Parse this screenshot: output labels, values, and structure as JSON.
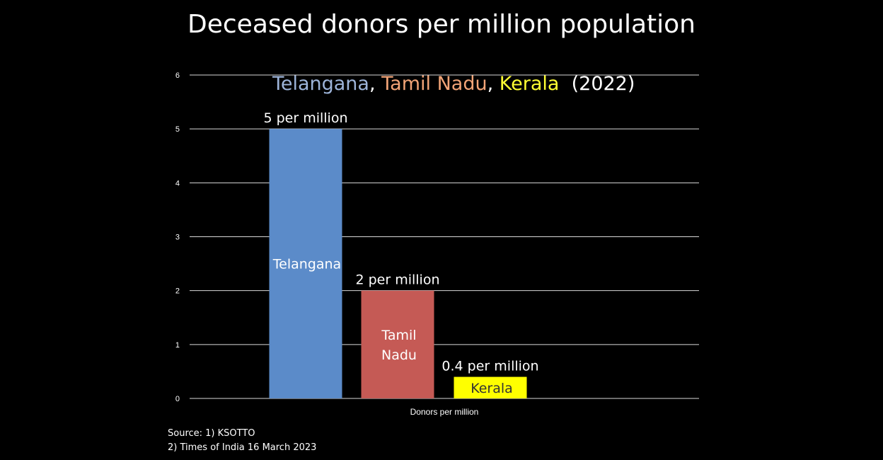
{
  "title": "Deceased donors per million population",
  "subtitle": {
    "parts": [
      {
        "text": "Telangana",
        "color": "#9DB4D9"
      },
      {
        "text": ", ",
        "color": "#ffffff"
      },
      {
        "text": "Tamil Nadu",
        "color": "#F2A477"
      },
      {
        "text": ", ",
        "color": "#ffffff"
      },
      {
        "text": "Kerala",
        "color": "#FFFF33"
      },
      {
        "text": "  (2022)",
        "color": "#ffffff"
      }
    ]
  },
  "source": {
    "line1": "Source: 1) KSOTTO",
    "line2": "2) Times of India 16 March 2023"
  },
  "chart_data": {
    "type": "bar",
    "xlabel": "Donors per million",
    "ylabel": "",
    "ylim": [
      0,
      6
    ],
    "yticks": [
      0,
      1,
      2,
      3,
      4,
      5,
      6
    ],
    "grid": true,
    "legend": "none",
    "series": [
      {
        "category": "Telangana",
        "value": 5,
        "label": "5 per million",
        "inner_lines": [
          "Telangana"
        ],
        "color": "#5B8BC9",
        "text_color": "#ffffff"
      },
      {
        "category": "Tamil Nadu",
        "value": 2,
        "label": "2 per million",
        "inner_lines": [
          "Tamil",
          "Nadu"
        ],
        "color": "#C55A55",
        "text_color": "#ffffff"
      },
      {
        "category": "Kerala",
        "value": 0.4,
        "label": "0.4 per million",
        "inner_lines": [
          "Kerala"
        ],
        "color": "#FFFF00",
        "text_color": "#333333"
      }
    ]
  }
}
